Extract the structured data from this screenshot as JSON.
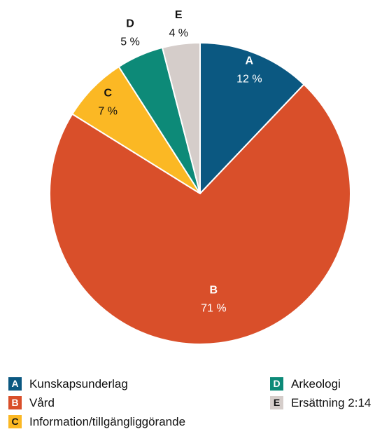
{
  "chart_data": {
    "type": "pie",
    "letters": [
      "A",
      "B",
      "C",
      "D",
      "E"
    ],
    "categories": [
      "Kunskapsunderlag",
      "Vård",
      "Information/tillgängliggörande",
      "Arkeologi",
      "Ersättning 2:14"
    ],
    "values": [
      12,
      71,
      7,
      5,
      4
    ],
    "value_labels": [
      "12 %",
      "71 %",
      "7 %",
      "5 %",
      "4 %"
    ],
    "colors": [
      "#0b5881",
      "#d94f2a",
      "#fbb824",
      "#0d8a78",
      "#d5cdca"
    ]
  }
}
